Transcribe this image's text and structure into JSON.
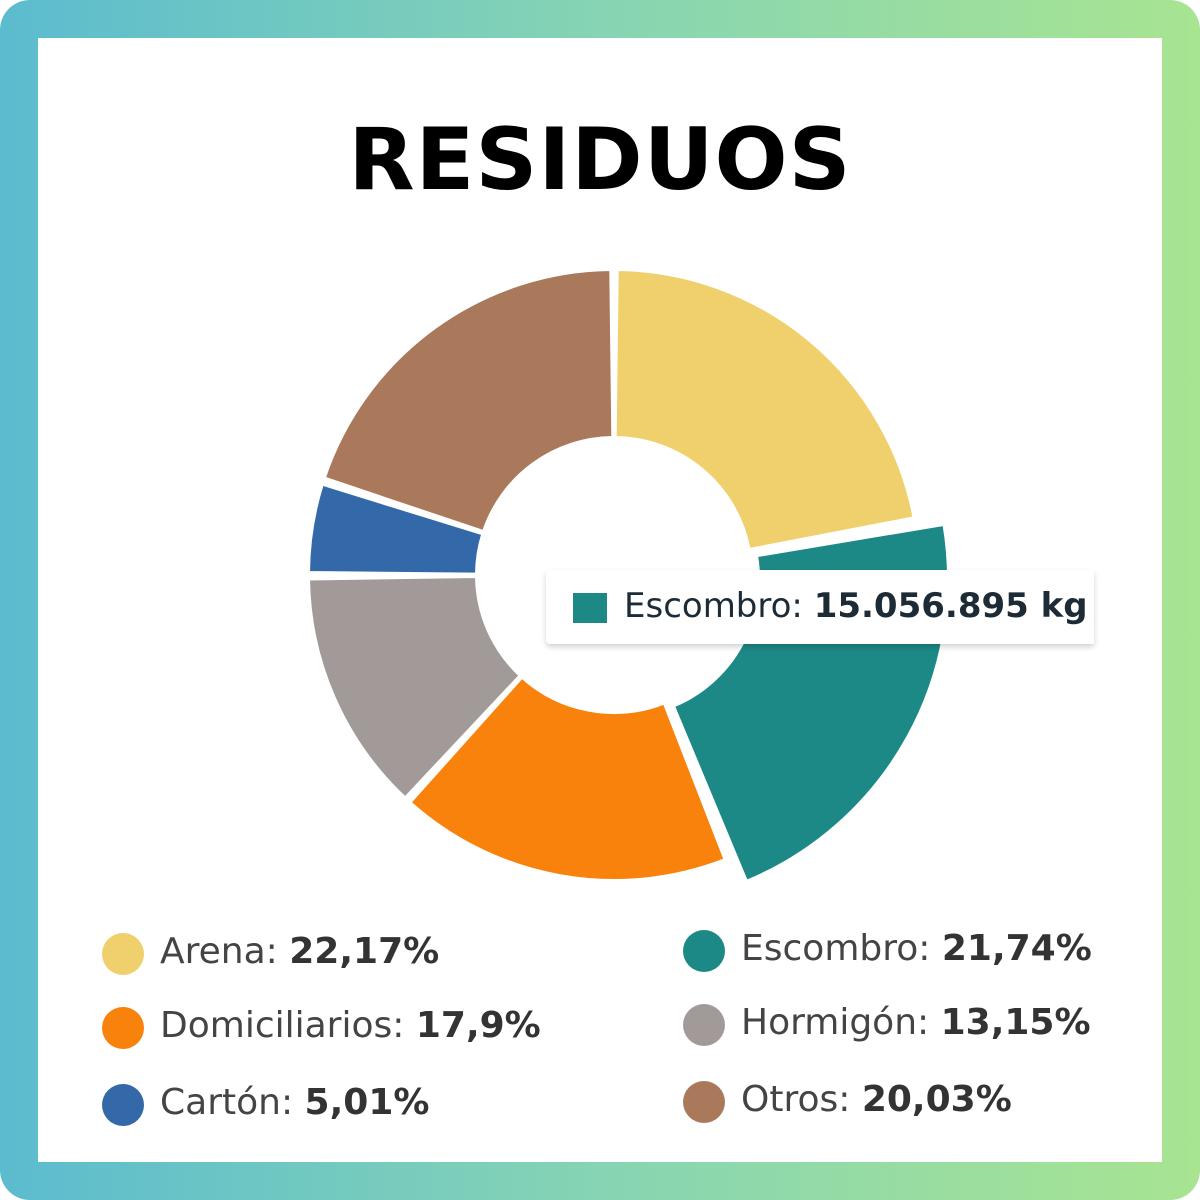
{
  "chart_data": {
    "type": "pie",
    "title": "RESIDUOS",
    "categories": [
      "Arena",
      "Escombro",
      "Domiciliarios",
      "Hormigón",
      "Cartón",
      "Otros"
    ],
    "values": [
      22.17,
      21.74,
      17.9,
      13.15,
      5.01,
      20.03
    ],
    "value_labels": [
      "22,17%",
      "21,74%",
      "17,9%",
      "13,15%",
      "5,01%",
      "20,03%"
    ],
    "colors": [
      "#f0d06c",
      "#1c8986",
      "#f8820c",
      "#a29a98",
      "#3469a9",
      "#aa785a"
    ],
    "hole": "donut",
    "highlighted": "Escombro",
    "legend_position": "bottom",
    "legend": [
      {
        "label": "Arena:",
        "value": "22,17%",
        "color": "#f0d06c"
      },
      {
        "label": "Escombro:",
        "value": "21,74%",
        "color": "#1c8986"
      },
      {
        "label": "Domiciliarios:",
        "value": "17,9%",
        "color": "#f8820c"
      },
      {
        "label": "Hormigón:",
        "value": "13,15%",
        "color": "#a29a98"
      },
      {
        "label": "Cartón:",
        "value": "5,01%",
        "color": "#3469a9"
      },
      {
        "label": "Otros:",
        "value": "20,03%",
        "color": "#aa785a"
      }
    ],
    "tooltip": {
      "label": "Escombro:",
      "value": "15.056.895 kg",
      "color": "#1c8986"
    }
  },
  "theme": {
    "frame_gradient": [
      "#5bbccf",
      "#a8e491"
    ],
    "card_background": "#ffffff"
  }
}
